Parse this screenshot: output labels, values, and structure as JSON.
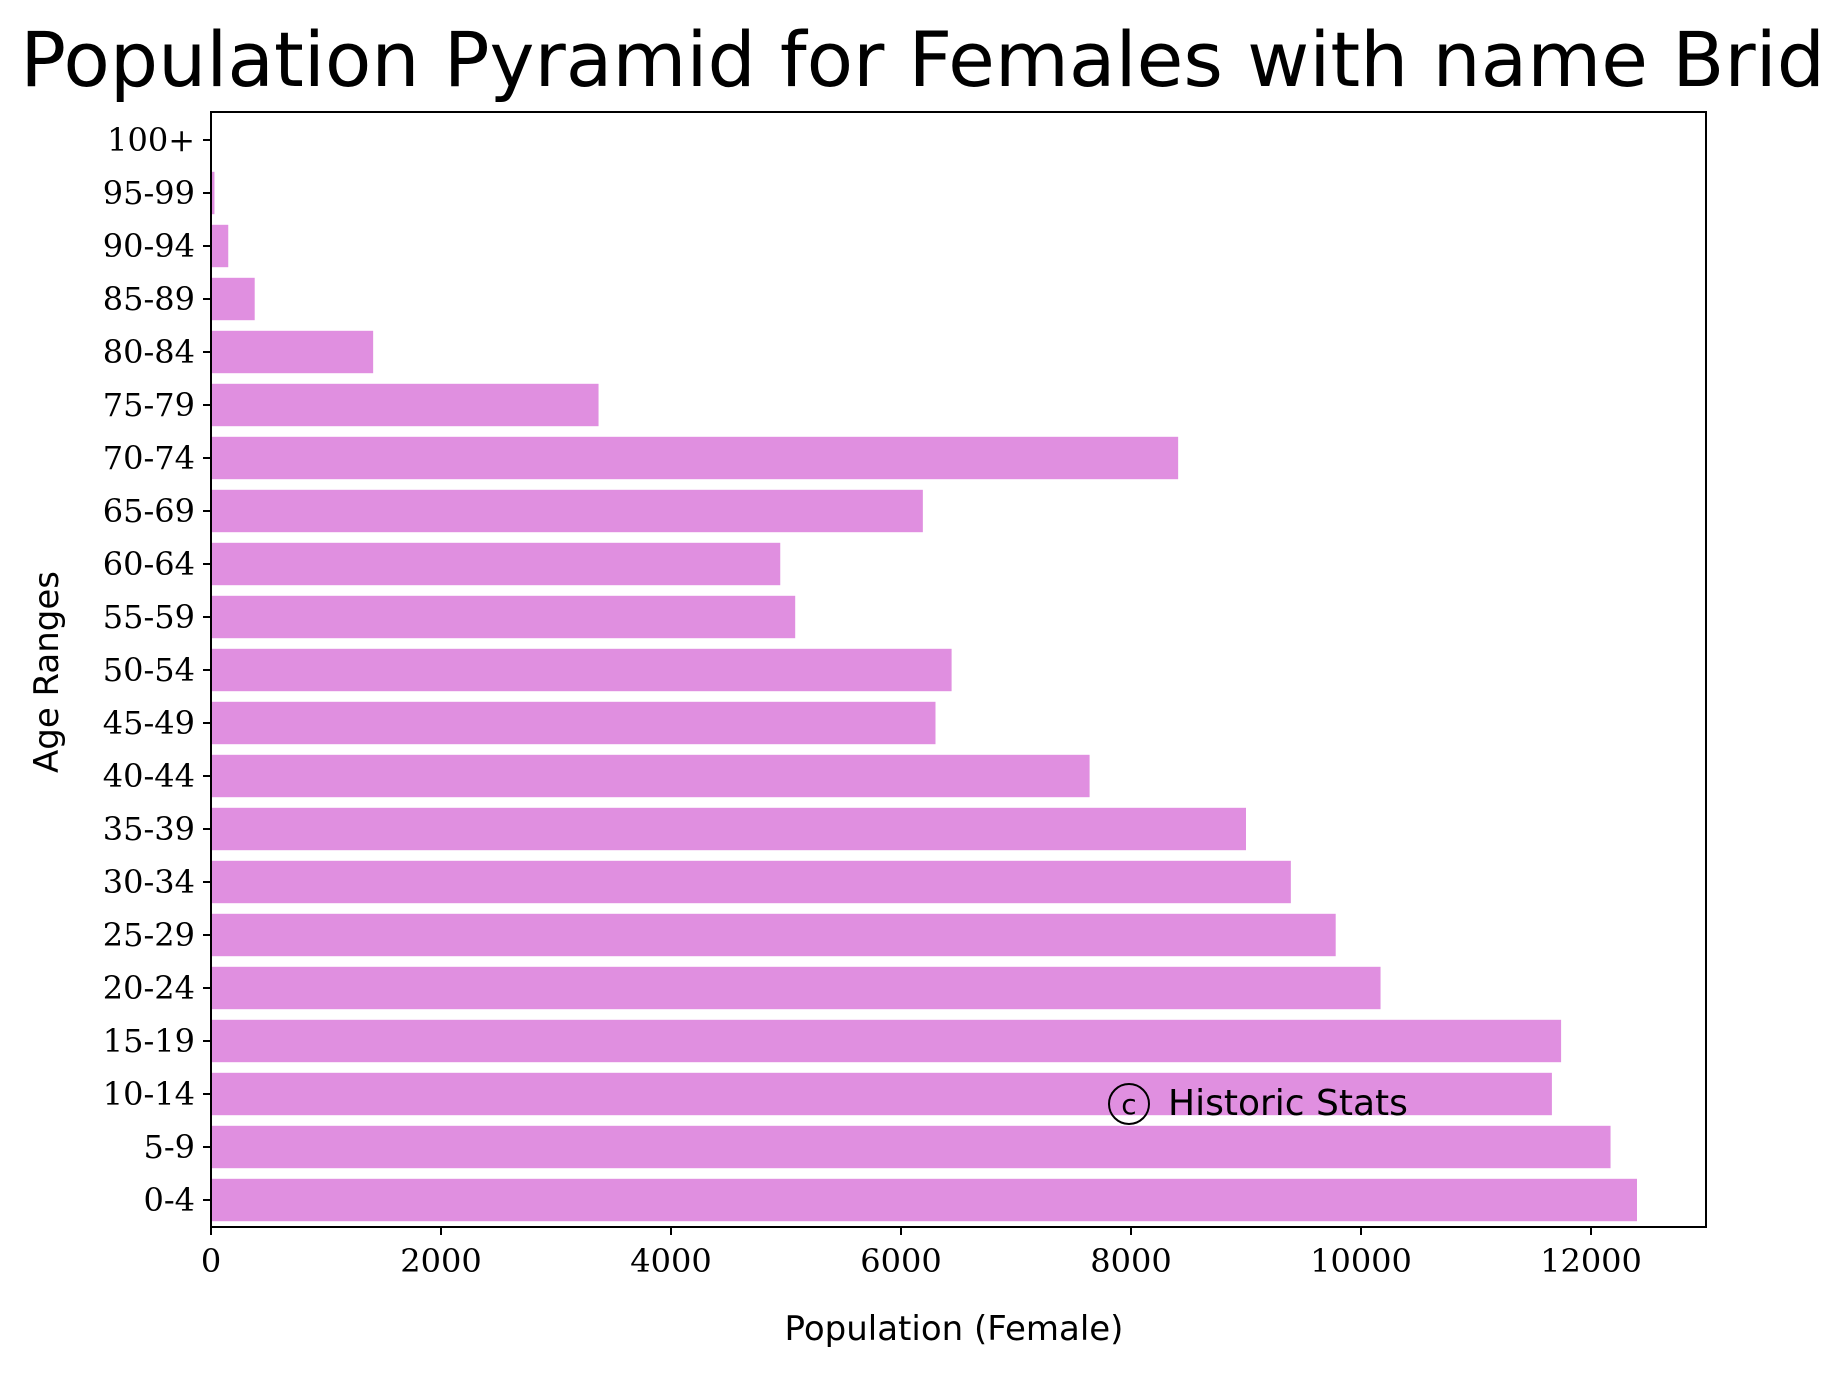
{
  "chart_data": {
    "type": "bar",
    "orientation": "horizontal",
    "title": "Population Pyramid for Females with name Bridget",
    "xlabel": "Population (Female)",
    "ylabel": "Age Ranges",
    "categories": [
      "0-4",
      "5-9",
      "10-14",
      "15-19",
      "20-24",
      "25-29",
      "30-34",
      "35-39",
      "40-44",
      "45-49",
      "50-54",
      "55-59",
      "60-64",
      "65-69",
      "70-74",
      "75-79",
      "80-84",
      "85-89",
      "90-94",
      "95-99",
      "100+"
    ],
    "values": [
      12400,
      12170,
      11660,
      11740,
      10170,
      9780,
      9390,
      9000,
      7640,
      6300,
      6440,
      5080,
      4950,
      6190,
      8410,
      3370,
      1410,
      380,
      150,
      30,
      0
    ],
    "xlim": [
      0,
      13000
    ],
    "xticks": [
      0,
      2000,
      4000,
      6000,
      8000,
      10000,
      12000
    ],
    "xtick_labels": [
      "0",
      "2000",
      "4000",
      "6000",
      "8000",
      "10000",
      "12000"
    ],
    "bar_color": "#e08fe0",
    "grid": false,
    "watermark": "Historic Stats",
    "watermark_symbol": "c"
  }
}
